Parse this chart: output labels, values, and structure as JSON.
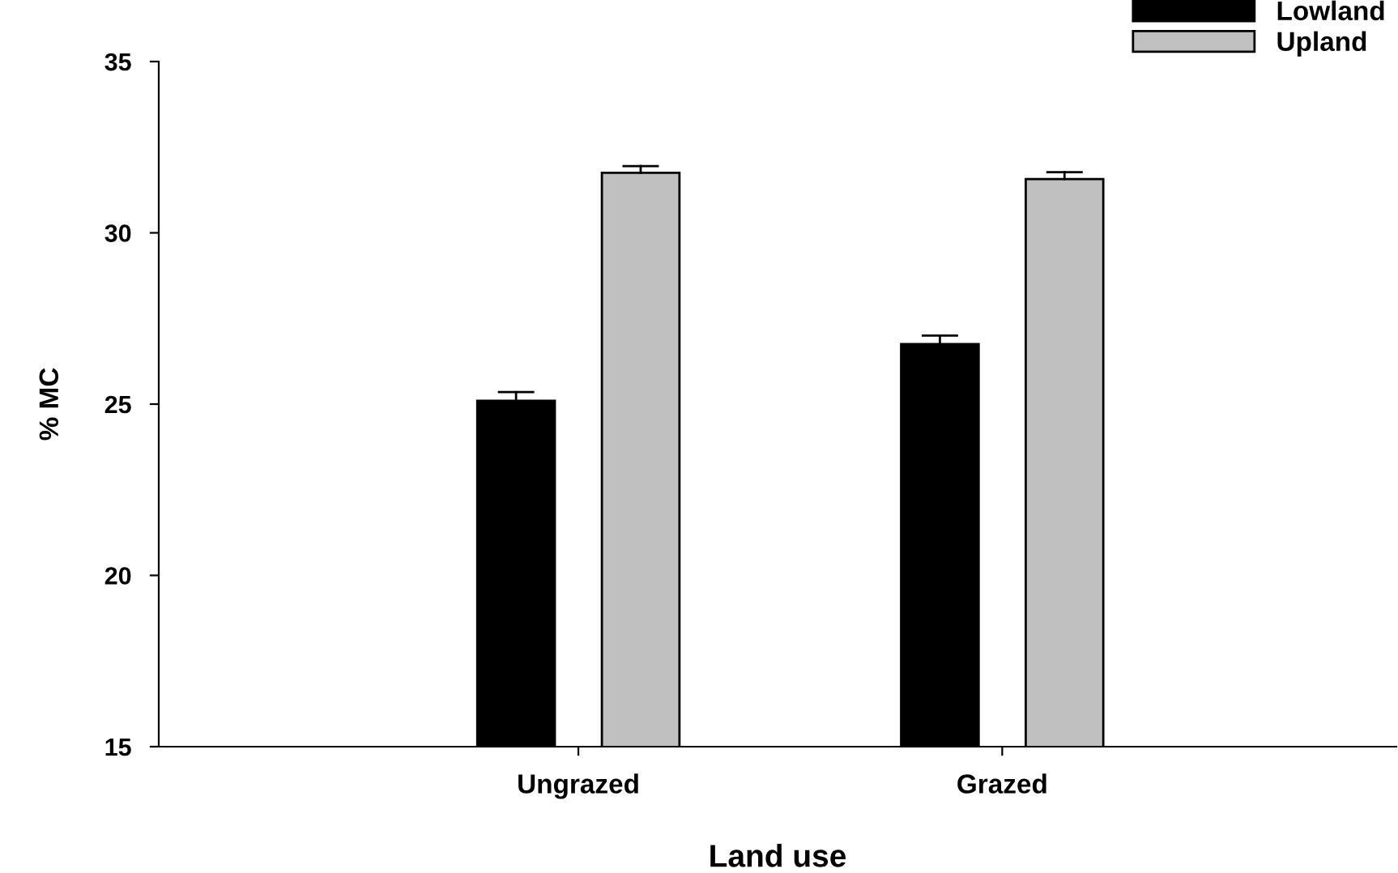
{
  "chart_data": {
    "type": "bar",
    "xlabel": "Land use",
    "ylabel": "% MC",
    "categories": [
      "Ungrazed",
      "Grazed"
    ],
    "series": [
      {
        "name": "Lowland",
        "color": "#000000",
        "values": [
          25.1,
          26.75
        ],
        "errors": [
          [
            25.1,
            25.35
          ],
          [
            26.75,
            27.0
          ]
        ]
      },
      {
        "name": "Upland",
        "color": "#c0c0c0",
        "values": [
          31.75,
          31.57
        ],
        "errors": [
          [
            31.75,
            31.95
          ],
          [
            31.57,
            31.77
          ]
        ]
      }
    ],
    "ylim": [
      15,
      35
    ],
    "yticks": [
      15,
      20,
      25,
      30,
      35
    ],
    "grid": false,
    "legend": "top right"
  }
}
